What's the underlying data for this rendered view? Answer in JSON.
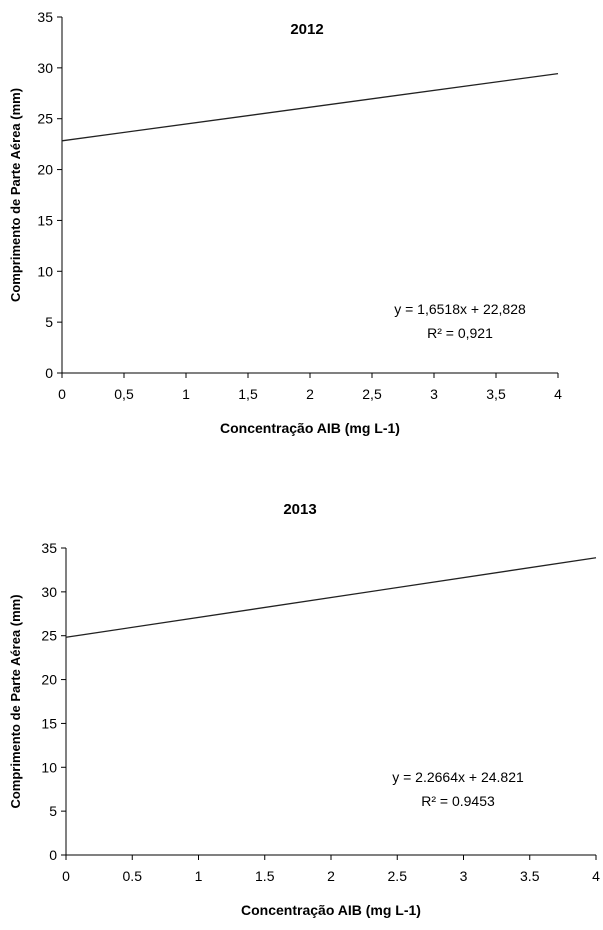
{
  "chart_data": [
    {
      "type": "line",
      "title": "2012",
      "xlabel": "Concentração AIB (mg L-1)",
      "ylabel": "Comprimento de Parte Aérea (mm)",
      "x": [
        0,
        4
      ],
      "y": [
        22.828,
        29.435
      ],
      "xlim": [
        0,
        4
      ],
      "ylim": [
        0,
        35
      ],
      "x_ticks": [
        "0",
        "0,5",
        "1",
        "1,5",
        "2",
        "2,5",
        "3",
        "3,5",
        "4"
      ],
      "y_ticks": [
        "0",
        "5",
        "10",
        "15",
        "20",
        "25",
        "30",
        "35"
      ],
      "equation": "y = 1,6518x + 22,828",
      "r2": "R² = 0,921",
      "grid": false
    },
    {
      "type": "line",
      "title": "2013",
      "xlabel": "Concentração AIB (mg L-1)",
      "ylabel": "Comprimento de Parte Aérea (mm)",
      "x": [
        0,
        4
      ],
      "y": [
        24.821,
        33.887
      ],
      "xlim": [
        0,
        4
      ],
      "ylim": [
        0,
        35
      ],
      "x_ticks": [
        "0",
        "0.5",
        "1",
        "1.5",
        "2",
        "2.5",
        "3",
        "3.5",
        "4"
      ],
      "y_ticks": [
        "0",
        "5",
        "10",
        "15",
        "20",
        "25",
        "30",
        "35"
      ],
      "equation": "y = 2.2664x + 24.821",
      "r2": "R² = 0.9453",
      "grid": false
    }
  ]
}
